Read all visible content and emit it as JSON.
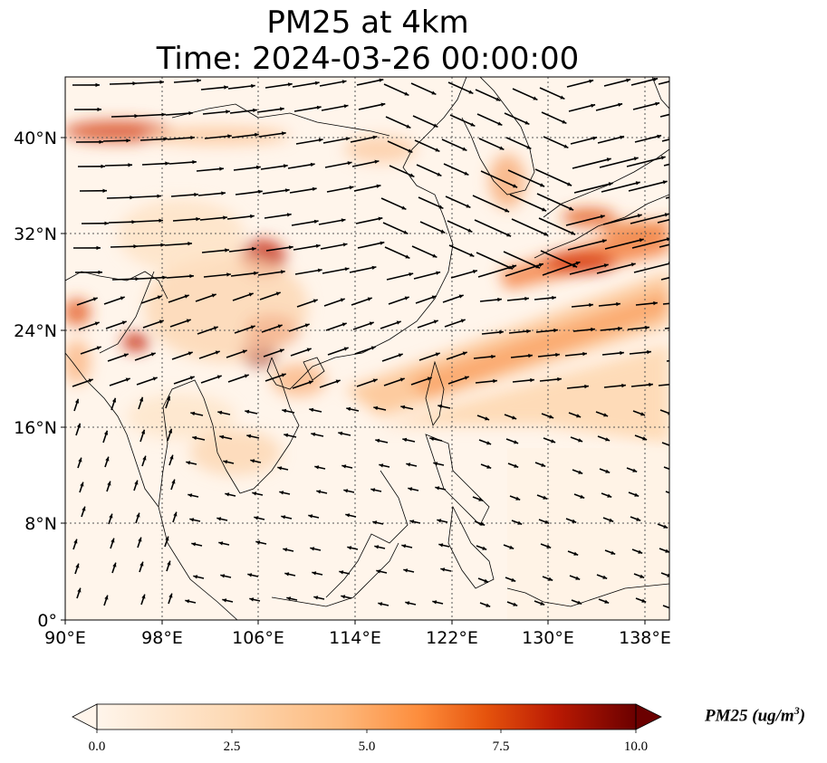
{
  "title": {
    "line1": "PM25 at 4km",
    "line2": "Time: 2024-03-26 00:00:00"
  },
  "map": {
    "lon_range": [
      90,
      140
    ],
    "lat_range": [
      0,
      45
    ],
    "x_ticks": [
      "90°E",
      "98°E",
      "106°E",
      "114°E",
      "122°E",
      "130°E",
      "138°E"
    ],
    "y_ticks": [
      "0°",
      "8°N",
      "16°N",
      "24°N",
      "32°N",
      "40°N"
    ],
    "gridlines": true,
    "background_color": "#fff5eb"
  },
  "colorbar": {
    "label_main": "PM25 (ug/m",
    "label_sup": "3",
    "label_end": ")",
    "ticks": [
      "0.0",
      "2.5",
      "5.0",
      "7.5",
      "10.0"
    ],
    "range": [
      0,
      10
    ],
    "colormap": "OrRd",
    "colors": [
      "#fff5eb",
      "#fdd9b4",
      "#fdb97d",
      "#fd8c3b",
      "#e6540d",
      "#bb1a03",
      "#a30000",
      "#6b0000"
    ]
  }
}
